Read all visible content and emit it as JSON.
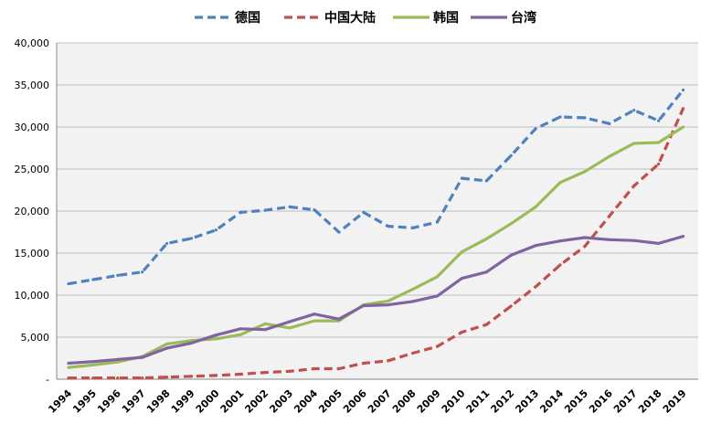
{
  "chart_data": {
    "type": "line",
    "title": "",
    "xlabel": "",
    "ylabel": "",
    "ylim": [
      0,
      40000
    ],
    "yticks": [
      0,
      5000,
      10000,
      15000,
      20000,
      25000,
      30000,
      35000,
      40000
    ],
    "ytick_labels": [
      "-",
      "5,000",
      "10,000",
      "15,000",
      "20,000",
      "25,000",
      "30,000",
      "35,000",
      "40,000"
    ],
    "grid": "horizontal",
    "legend_position": "top",
    "categories": [
      "1994",
      "1995",
      "1996",
      "1997",
      "1998",
      "1999",
      "2000",
      "2001",
      "2002",
      "2003",
      "2004",
      "2005",
      "2006",
      "2007",
      "2008",
      "2009",
      "2010",
      "2011",
      "2012",
      "2013",
      "2014",
      "2015",
      "2016",
      "2017",
      "2018",
      "2019"
    ],
    "series": [
      {
        "name": "德国",
        "color": "#4F81BD",
        "dash": "dashed",
        "values": [
          11350,
          11850,
          12350,
          12750,
          16150,
          16750,
          17750,
          19850,
          20100,
          20500,
          20150,
          17500,
          19850,
          18200,
          18000,
          18700,
          23900,
          23600,
          26600,
          29800,
          31200,
          31100,
          30400,
          32000,
          30750,
          34400
        ]
      },
      {
        "name": "中国大陆",
        "color": "#C0504D",
        "dash": "dashed",
        "values": [
          150,
          150,
          150,
          150,
          250,
          350,
          450,
          600,
          800,
          950,
          1250,
          1250,
          1900,
          2200,
          3100,
          3900,
          5600,
          6500,
          8700,
          11000,
          13600,
          15800,
          19400,
          23000,
          25600,
          32200
        ]
      },
      {
        "name": "韩国",
        "color": "#9BBB59",
        "dash": "solid",
        "values": [
          1400,
          1700,
          2050,
          2700,
          4200,
          4600,
          4800,
          5300,
          6600,
          6100,
          6950,
          6950,
          8850,
          9300,
          10700,
          12200,
          15150,
          16700,
          18500,
          20500,
          23400,
          24700,
          26500,
          28050,
          28150,
          30000
        ]
      },
      {
        "name": "台湾",
        "color": "#8064A2",
        "dash": "solid",
        "values": [
          1900,
          2100,
          2350,
          2600,
          3700,
          4300,
          5250,
          6000,
          5900,
          6850,
          7750,
          7150,
          8750,
          8850,
          9250,
          9900,
          12000,
          12750,
          14750,
          15900,
          16450,
          16850,
          16600,
          16500,
          16150,
          17000
        ]
      }
    ]
  }
}
